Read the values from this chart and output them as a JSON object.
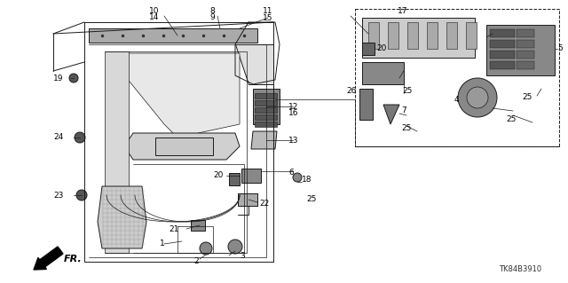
{
  "part_number": "TK84B3910",
  "background_color": "#ffffff",
  "line_color": "#1a1a1a",
  "label_color": "#000000",
  "label_fontsize": 6.5,
  "figsize": [
    6.4,
    3.19
  ],
  "dpi": 100
}
